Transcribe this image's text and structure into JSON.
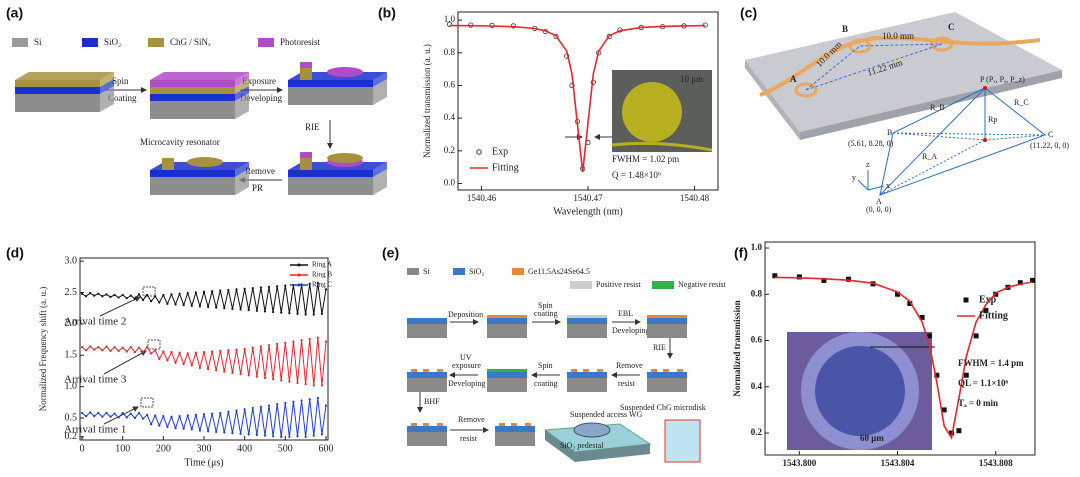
{
  "chart_data": [
    {
      "type": "line",
      "panel_label": "(b)",
      "xlabel": "Wavelength (nm)",
      "ylabel": "Normalized transmission (a. u.)",
      "xlim": [
        1540.4578,
        1540.4822
      ],
      "xticks": [
        1540.46,
        1540.47,
        1540.48
      ],
      "ylim": [
        -0.04,
        1.05
      ],
      "yticks": [
        {
          "value": 0,
          "label": "0.0"
        },
        0.2,
        0.4,
        0.6,
        0.8,
        {
          "value": 1,
          "label": "1.0"
        }
      ],
      "legend": "lower left",
      "x": [
        1540.457,
        1540.459,
        1540.461,
        1540.463,
        1540.465,
        1540.466,
        1540.467,
        1540.468,
        1540.4685,
        1540.469,
        1540.4695,
        1540.47,
        1540.4705,
        1540.471,
        1540.472,
        1540.473,
        1540.475,
        1540.477,
        1540.479,
        1540.481
      ],
      "series": [
        {
          "name": "Exp",
          "color": "#333333",
          "marker": "circle",
          "values": [
            0.975,
            0.97,
            0.968,
            0.965,
            0.95,
            0.93,
            0.9,
            0.78,
            0.6,
            0.38,
            0.09,
            0.25,
            0.62,
            0.8,
            0.9,
            0.94,
            0.955,
            0.96,
            0.965,
            0.97
          ]
        },
        {
          "name": "Fitting",
          "color": "#e8262a",
          "marker": "none",
          "values": [
            0.967,
            0.966,
            0.964,
            0.96,
            0.949,
            0.935,
            0.905,
            0.81,
            0.67,
            0.37,
            0.07,
            0.37,
            0.67,
            0.81,
            0.905,
            0.935,
            0.956,
            0.962,
            0.965,
            0.967
          ]
        }
      ],
      "annotations": [
        "FWHM = 1.02 pm",
        "Q = 1.48×10⁶",
        "10 μm"
      ]
    },
    {
      "type": "line",
      "panel_label": "(d)",
      "xlabel": "Time (μs)",
      "ylabel": "Normalized Frequency shift (a. u.)",
      "xlim": [
        -5,
        605
      ],
      "xticks": [
        0,
        100,
        200,
        300,
        400,
        500,
        600
      ],
      "ylim": [
        0.15,
        3.05
      ],
      "yticks": [
        0.2,
        0.5,
        {
          "value": 1,
          "label": "1.0"
        },
        1.5,
        {
          "value": 2,
          "label": "2.0"
        },
        2.5,
        {
          "value": 3,
          "label": "3.0"
        }
      ],
      "legend": "upper right",
      "x": [
        0,
        10,
        20,
        30,
        40,
        50,
        60,
        70,
        80,
        90,
        100,
        110,
        120,
        130,
        140,
        150,
        160,
        170,
        180,
        190,
        200,
        210,
        220,
        230,
        240,
        250,
        260,
        270,
        280,
        290,
        300,
        310,
        320,
        330,
        340,
        350,
        360,
        370,
        380,
        390,
        400,
        410,
        420,
        430,
        440,
        450,
        460,
        470,
        480,
        490,
        500,
        510,
        520,
        530,
        540,
        550,
        560,
        570,
        580,
        590,
        600
      ],
      "series": [
        {
          "name": "Ring A",
          "color": "#111111",
          "marker": "dot",
          "values": [
            2.48,
            2.44,
            2.49,
            2.45,
            2.48,
            2.44,
            2.47,
            2.43,
            2.46,
            2.42,
            2.46,
            2.41,
            2.45,
            2.4,
            2.47,
            2.38,
            2.46,
            2.36,
            2.44,
            2.34,
            2.46,
            2.32,
            2.47,
            2.31,
            2.48,
            2.3,
            2.49,
            2.29,
            2.5,
            2.28,
            2.51,
            2.27,
            2.52,
            2.26,
            2.53,
            2.25,
            2.54,
            2.24,
            2.55,
            2.23,
            2.56,
            2.22,
            2.57,
            2.21,
            2.58,
            2.2,
            2.59,
            2.19,
            2.6,
            2.18,
            2.61,
            2.17,
            2.62,
            2.16,
            2.63,
            2.15,
            2.64,
            2.15,
            2.65,
            2.16,
            2.55
          ]
        },
        {
          "name": "Ring B",
          "color": "#e8262a",
          "marker": "dot",
          "values": [
            1.63,
            1.58,
            1.64,
            1.59,
            1.63,
            1.58,
            1.64,
            1.57,
            1.63,
            1.57,
            1.62,
            1.56,
            1.63,
            1.55,
            1.62,
            1.55,
            1.63,
            1.53,
            1.58,
            1.44,
            1.56,
            1.42,
            1.55,
            1.38,
            1.54,
            1.36,
            1.53,
            1.34,
            1.54,
            1.3,
            1.55,
            1.28,
            1.56,
            1.26,
            1.57,
            1.24,
            1.58,
            1.22,
            1.59,
            1.2,
            1.6,
            1.18,
            1.62,
            1.16,
            1.64,
            1.14,
            1.66,
            1.12,
            1.68,
            1.1,
            1.7,
            1.08,
            1.72,
            1.06,
            1.74,
            1.04,
            1.76,
            1.02,
            1.78,
            1.02,
            1.72
          ]
        },
        {
          "name": "Ring C",
          "color": "#1f3fd6",
          "marker": "dot",
          "values": [
            0.58,
            0.53,
            0.59,
            0.53,
            0.58,
            0.52,
            0.58,
            0.52,
            0.57,
            0.51,
            0.58,
            0.51,
            0.57,
            0.5,
            0.58,
            0.49,
            0.55,
            0.4,
            0.54,
            0.38,
            0.53,
            0.36,
            0.52,
            0.34,
            0.53,
            0.33,
            0.54,
            0.32,
            0.55,
            0.3,
            0.56,
            0.29,
            0.57,
            0.28,
            0.58,
            0.27,
            0.6,
            0.26,
            0.62,
            0.25,
            0.64,
            0.24,
            0.66,
            0.23,
            0.68,
            0.22,
            0.7,
            0.21,
            0.72,
            0.2,
            0.74,
            0.2,
            0.76,
            0.21,
            0.78,
            0.2,
            0.8,
            0.22,
            0.82,
            0.24,
            0.7
          ]
        }
      ],
      "annotations": [
        "Arrival time 2",
        "Arrival time 3",
        "Arrival time 1"
      ]
    },
    {
      "type": "line",
      "panel_label": "(f)",
      "ylabel": "Normalized transmission",
      "xlim": [
        1543.7986,
        1543.8096
      ],
      "xticks": [
        {
          "value": 1543.8,
          "label": "1543.800"
        },
        {
          "value": 1543.804,
          "label": "1543.804"
        },
        {
          "value": 1543.808,
          "label": "1543.808"
        }
      ],
      "ylim": [
        0.105,
        1.026
      ],
      "yticks": [
        0.2,
        0.4,
        0.6,
        0.8,
        {
          "value": 1,
          "label": "1.0"
        }
      ],
      "legend": "right",
      "x": [
        1543.799,
        1543.8,
        1543.801,
        1543.802,
        1543.803,
        1543.804,
        1543.8045,
        1543.805,
        1543.8053,
        1543.8056,
        1543.8059,
        1543.8062,
        1543.8065,
        1543.8068,
        1543.8072,
        1543.8076,
        1543.808,
        1543.8085,
        1543.809,
        1543.8095
      ],
      "series": [
        {
          "name": "Exp",
          "color": "#111111",
          "marker": "square",
          "values": [
            0.88,
            0.875,
            0.86,
            0.865,
            0.845,
            0.8,
            0.76,
            0.7,
            0.62,
            0.45,
            0.3,
            0.2,
            0.21,
            0.45,
            0.62,
            0.73,
            0.8,
            0.83,
            0.85,
            0.86
          ]
        },
        {
          "name": "Fitting",
          "color": "#e8262a",
          "marker": "none",
          "values": [
            0.873,
            0.871,
            0.867,
            0.861,
            0.848,
            0.81,
            0.77,
            0.68,
            0.58,
            0.42,
            0.23,
            0.18,
            0.35,
            0.53,
            0.68,
            0.755,
            0.805,
            0.83,
            0.844,
            0.853
          ]
        }
      ],
      "annotations": [
        "FWHM = 1.4 pm",
        "QL = 1.1×10⁶",
        "Tₐ = 0 min",
        "60 μm"
      ]
    }
  ],
  "panel_a": {
    "label": "(a)",
    "legend": [
      "Si",
      "SiO₂",
      "ChG / SiNₓ",
      "Photoresist"
    ],
    "steps": [
      "Spin",
      "Coating",
      "Exposure",
      "Developing",
      "RIE",
      "Remove",
      "PR"
    ],
    "caption": "Microcavity resonator"
  },
  "panel_c": {
    "label": "(c)",
    "points": [
      "A",
      "B",
      "C",
      "P (Pₓ, Pᵧ, P_z)"
    ],
    "distances": [
      "10.0 mm",
      "10.0 mm",
      "11.22 mm"
    ],
    "edges": [
      "R_A",
      "R_B",
      "R_C",
      "Rp"
    ],
    "coords": [
      "(5.61, 8.28, 0)",
      "(11.22, 0, 0)",
      "(0, 0, 0)"
    ],
    "axes": [
      "x",
      "y",
      "z"
    ]
  },
  "panel_e": {
    "label": "(e)",
    "legend": [
      "Si",
      "SiO₂",
      "Ge11.5As24Se64.5",
      "Positive resist",
      "Negative resist"
    ],
    "steps": [
      "Deposition",
      "Spin",
      "coating",
      "EBL",
      "Developing",
      "RIE",
      "Remove",
      "resist",
      "Spin",
      "coating",
      "UV",
      "exposure",
      "Developing",
      "BHF",
      "Remove",
      "resist"
    ],
    "callouts": [
      "Suspended access WG",
      "Suspended ChG microdisk",
      "SiO₂ pedestal"
    ]
  }
}
